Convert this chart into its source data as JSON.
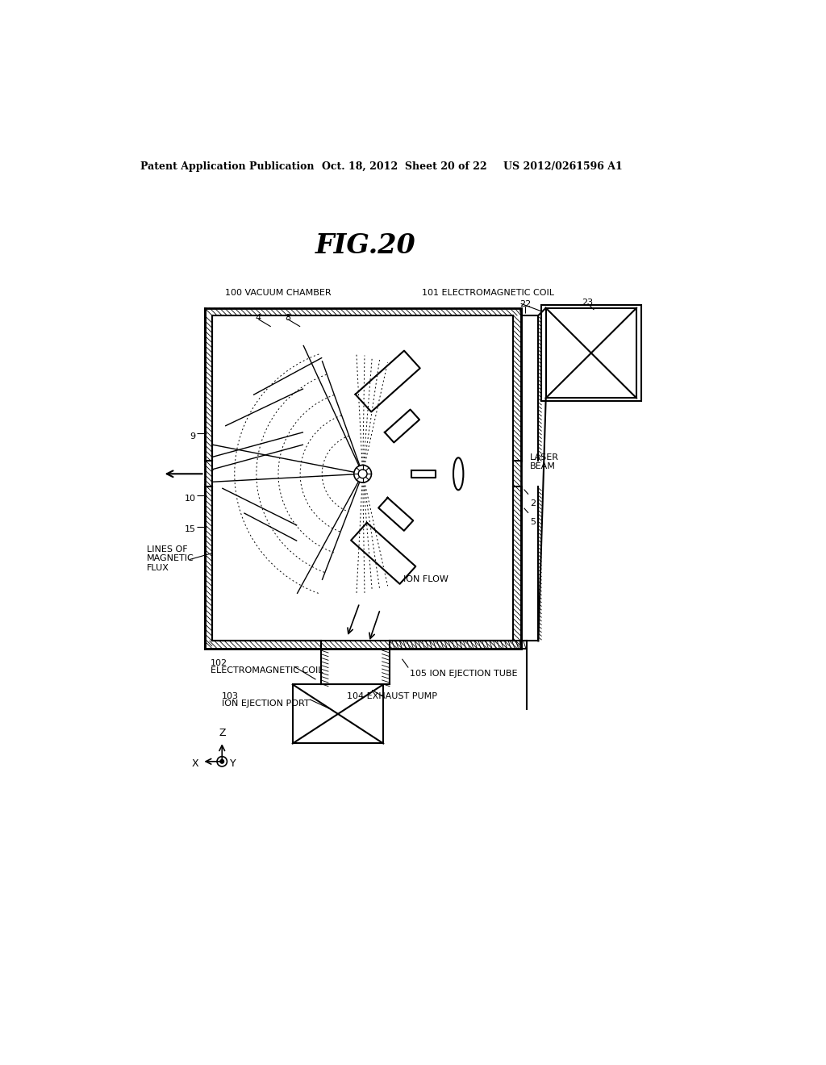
{
  "bg_color": "#ffffff",
  "header_left": "Patent Application Publication",
  "header_center": "Oct. 18, 2012  Sheet 20 of 22",
  "header_right": "US 2012/0261596 A1",
  "fig_title": "FIG.20"
}
